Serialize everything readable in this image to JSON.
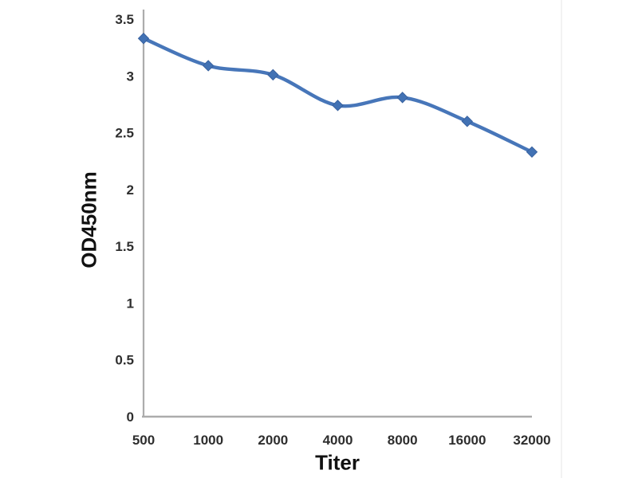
{
  "chart_data": {
    "type": "line",
    "title": "",
    "xlabel": "Titer",
    "ylabel": "OD450nm",
    "categories": [
      "500",
      "1000",
      "2000",
      "4000",
      "8000",
      "16000",
      "32000"
    ],
    "series": [
      {
        "name": "OD450nm",
        "values": [
          3.33,
          3.09,
          3.01,
          2.74,
          2.81,
          2.6,
          2.33
        ]
      }
    ],
    "ylim": [
      0,
      3.5
    ],
    "y_ticks": [
      3.5,
      3,
      2.5,
      2,
      1.5,
      1,
      0.5,
      0
    ],
    "y_tick_labels": [
      "3.5",
      "3",
      "2.5",
      "2",
      "1.5",
      "1",
      "0.5",
      "0"
    ],
    "grid": false,
    "legend": "none",
    "smooth": true,
    "marker": "diamond",
    "colors": {
      "line": "#4776B9",
      "marker_fill": "#4272B4",
      "marker_edge": "#38619F",
      "axis": "#ACACAC",
      "tick_text": "#2E2E2E",
      "axis_title": "#111111",
      "background": "#FFFFFF"
    }
  }
}
